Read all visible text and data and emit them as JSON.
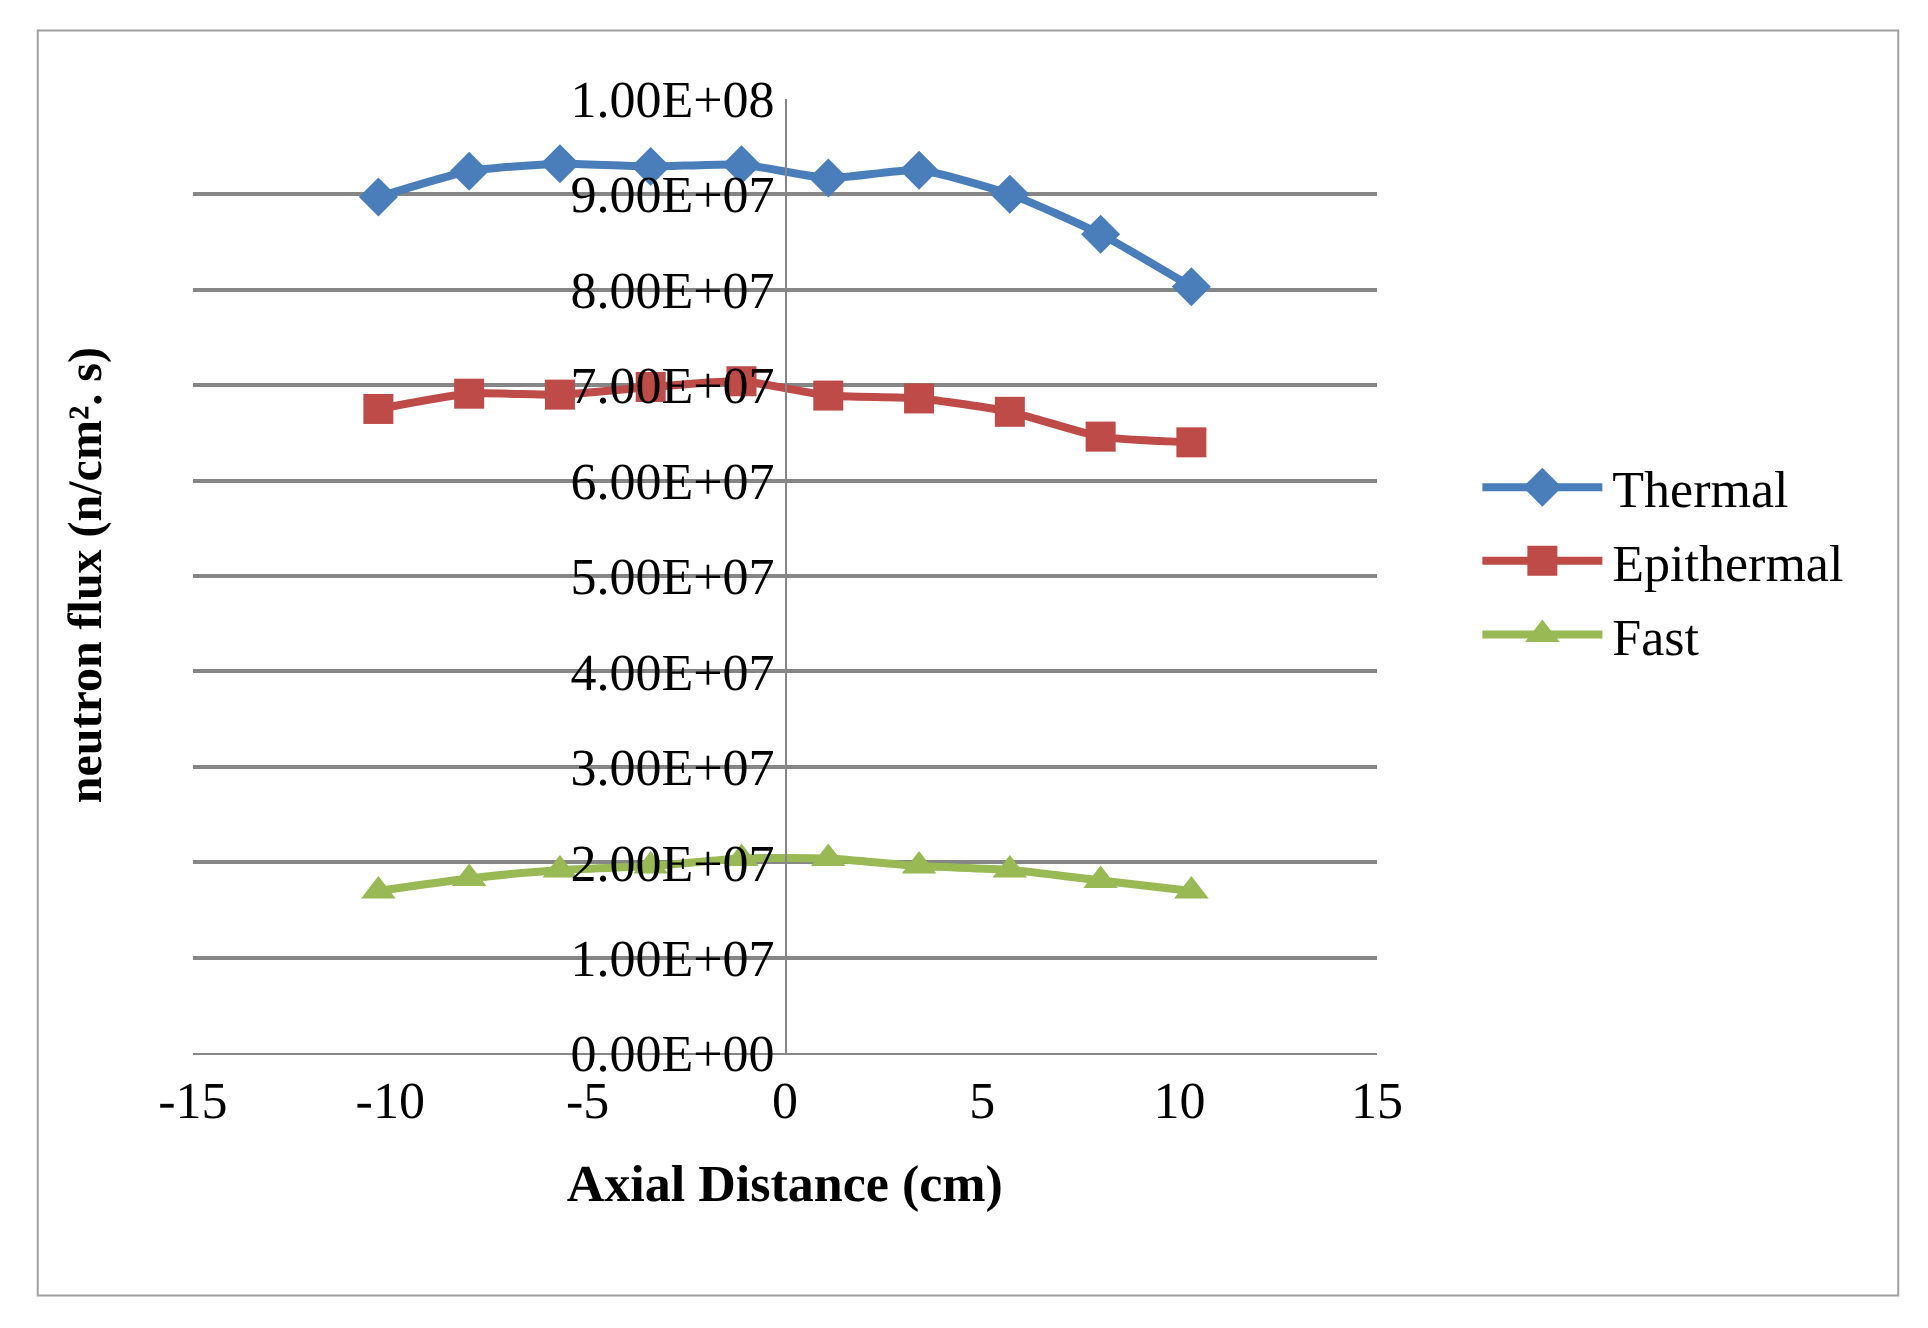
{
  "chart_data": {
    "type": "line",
    "xlabel": "Axial Distance (cm)",
    "ylabel": "neutron flux (n/cm². s)",
    "x": [
      -10.3,
      -8.0,
      -5.7,
      -3.4,
      -1.1,
      1.1,
      3.4,
      5.7,
      8.0,
      10.3
    ],
    "series": [
      {
        "name": "Thermal",
        "color": "#4a7ebb",
        "marker": "diamond",
        "values": [
          89700000,
          92400000,
          93200000,
          92900000,
          93100000,
          91700000,
          92500000,
          90000000,
          85800000,
          80300000
        ]
      },
      {
        "name": "Epithermal",
        "color": "#be4b48",
        "marker": "square",
        "values": [
          67500000,
          69100000,
          69000000,
          69800000,
          70400000,
          68900000,
          68600000,
          67200000,
          64600000,
          64000000
        ]
      },
      {
        "name": "Fast",
        "color": "#98b954",
        "marker": "triangle",
        "values": [
          17000000,
          18300000,
          19200000,
          19600000,
          20400000,
          20400000,
          19600000,
          19200000,
          18100000,
          17000000
        ]
      }
    ],
    "xlim": [
      -15,
      15
    ],
    "xticks": [
      -15,
      -10,
      -5,
      0,
      5,
      10,
      15
    ],
    "ylim": [
      0,
      100000000
    ],
    "yticks": [
      {
        "value": 0,
        "label": "0.00E+00"
      },
      {
        "value": 10000000,
        "label": "1.00E+07"
      },
      {
        "value": 20000000,
        "label": "2.00E+07"
      },
      {
        "value": 30000000,
        "label": "3.00E+07"
      },
      {
        "value": 40000000,
        "label": "4.00E+07"
      },
      {
        "value": 50000000,
        "label": "5.00E+07"
      },
      {
        "value": 60000000,
        "label": "6.00E+07"
      },
      {
        "value": 70000000,
        "label": "7.00E+07"
      },
      {
        "value": 80000000,
        "label": "8.00E+07"
      },
      {
        "value": 90000000,
        "label": "9.00E+07"
      },
      {
        "value": 100000000,
        "label": "1.00E+08"
      }
    ],
    "grid": "y",
    "legend": "right",
    "line_style": "solid"
  }
}
